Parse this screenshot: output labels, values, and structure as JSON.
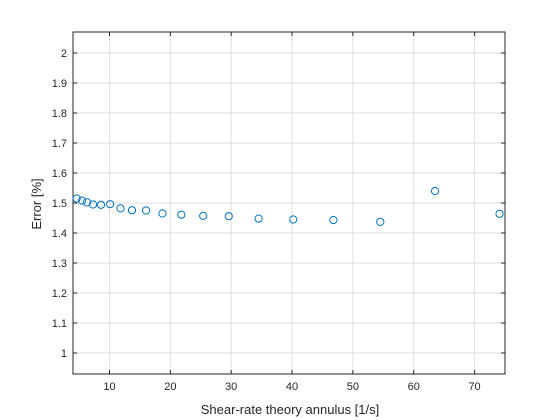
{
  "chart_data": {
    "type": "scatter",
    "title": "",
    "xlabel": "Shear-rate theory annulus [1/s]",
    "ylabel": "Error [%]",
    "xlim": [
      4,
      75
    ],
    "ylim": [
      0.93,
      2.07
    ],
    "xticks": [
      10,
      20,
      30,
      40,
      50,
      60,
      70
    ],
    "yticks": [
      1,
      1.1,
      1.2,
      1.3,
      1.4,
      1.5,
      1.6,
      1.7,
      1.8,
      1.9,
      2
    ],
    "ytick_labels": [
      "1",
      "1.1",
      "1.2",
      "1.3",
      "1.4",
      "1.5",
      "1.6",
      "1.7",
      "1.8",
      "1.9",
      "2"
    ],
    "grid": true,
    "marker": "open-circle",
    "series": [
      {
        "x": [
          4.6,
          5.5,
          6.3,
          7.3,
          8.6,
          10.1,
          11.8,
          13.7,
          16.0,
          18.7,
          21.8,
          25.4,
          29.6,
          34.5,
          40.2,
          46.8,
          54.5,
          63.5,
          74.1
        ],
        "y": [
          1.515,
          1.508,
          1.502,
          1.495,
          1.494,
          1.496,
          1.482,
          1.476,
          1.475,
          1.465,
          1.461,
          1.457,
          1.456,
          1.448,
          1.445,
          1.443,
          1.437,
          1.54,
          1.464
        ]
      }
    ],
    "colors": {
      "marker": "#0072bd",
      "axis": "#262626",
      "grid": "#dfdfdf"
    }
  }
}
